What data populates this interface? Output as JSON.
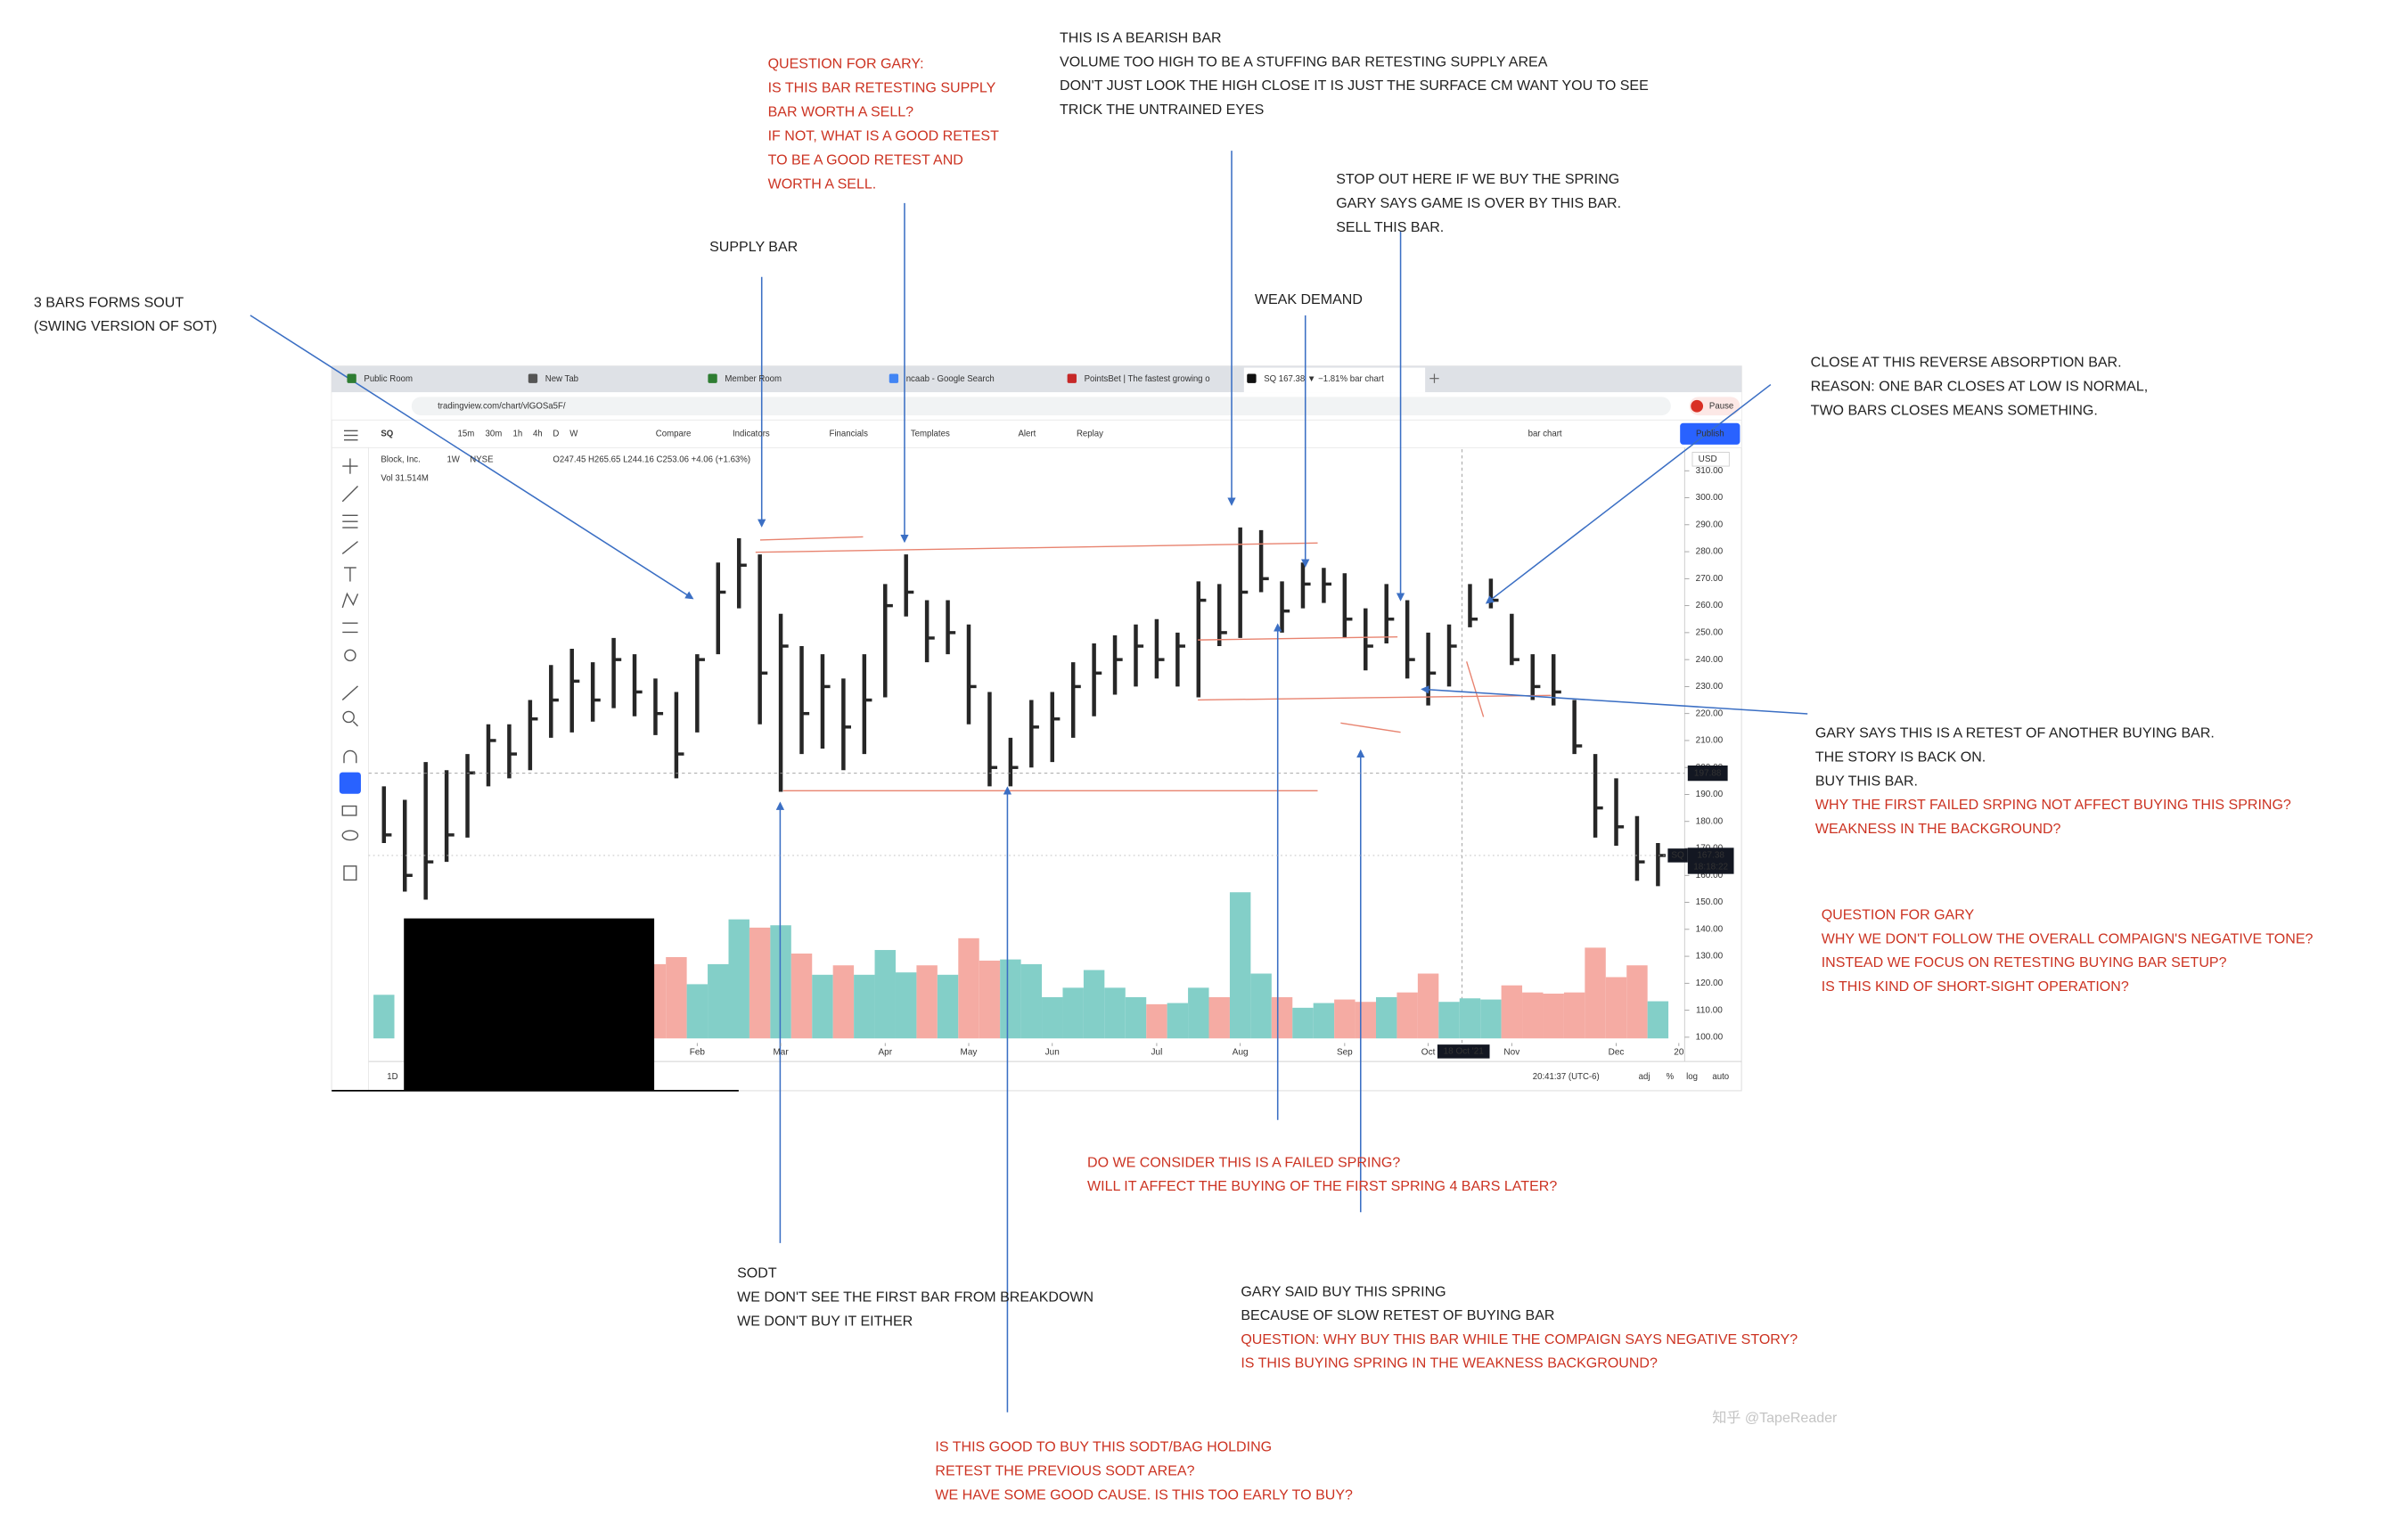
{
  "browser": {
    "tabs": [
      "Public Room",
      "New Tab",
      "Member Room",
      "ncaab - Google Search",
      "PointsBet | The fastest growing o",
      "SQ 167.38 ▼ −1.81% bar chart"
    ],
    "url": "tradingview.com/chart/vlGOSa5F/",
    "profile": "Pause"
  },
  "toolbar": {
    "symbol": "SQ",
    "intervals": [
      "15m",
      "30m",
      "1h",
      "4h",
      "D",
      "W"
    ],
    "buttons": [
      "Compare",
      "Indicators",
      "Financials",
      "Templates",
      "Alert",
      "Replay"
    ],
    "chart_style": "bar chart",
    "publish": "Publish"
  },
  "legend": {
    "name": "Block, Inc.",
    "interval": "1W",
    "exchange": "NYSE",
    "ohlc": "O247.45 H265.65 L244.16 C253.06 +4.06 (+1.63%)",
    "volume": "Vol 31.514M"
  },
  "status": {
    "range": "1D",
    "time": "20:41:37 (UTC-6)",
    "options": [
      "adj",
      "%",
      "log",
      "auto"
    ]
  },
  "chart_data": {
    "type": "hlc",
    "currency": "USD",
    "color": "#262626",
    "up_color": "#83cfc8",
    "down_color": "#f5aba3",
    "symbol_tag": "SQ",
    "countdown": "18:18:22",
    "crosshair_price": 197.88,
    "crosshair_date": "18 Oct '21",
    "high": [
      193,
      188,
      202,
      199,
      205,
      216,
      216,
      225,
      238,
      244,
      239,
      248,
      242,
      233,
      228,
      242,
      276,
      285,
      279,
      257,
      245,
      242,
      233,
      242,
      268,
      279,
      262,
      262,
      253,
      228,
      211,
      225,
      228,
      239,
      246,
      249,
      253,
      255,
      250,
      269,
      268,
      289,
      288,
      269,
      276,
      274,
      272,
      259,
      268,
      262,
      250,
      253,
      268,
      270,
      257,
      242,
      242,
      225,
      205,
      196,
      182,
      172
    ],
    "low": [
      172,
      154,
      151,
      165,
      174,
      193,
      196,
      199,
      211,
      213,
      217,
      222,
      219,
      212,
      196,
      213,
      242,
      259,
      216,
      191,
      205,
      207,
      199,
      205,
      226,
      256,
      239,
      242,
      216,
      193,
      193,
      200,
      202,
      211,
      219,
      227,
      230,
      233,
      230,
      226,
      245,
      248,
      265,
      250,
      259,
      261,
      248,
      236,
      246,
      233,
      223,
      230,
      252,
      259,
      238,
      225,
      223,
      205,
      174,
      171,
      158,
      156
    ],
    "close": [
      175,
      160,
      165,
      175,
      198,
      210,
      205,
      218,
      225,
      232,
      225,
      240,
      228,
      220,
      205,
      240,
      265,
      275,
      235,
      245,
      220,
      230,
      215,
      225,
      260,
      265,
      248,
      250,
      230,
      200,
      200,
      215,
      218,
      230,
      235,
      240,
      245,
      240,
      245,
      262,
      250,
      265,
      270,
      258,
      268,
      268,
      255,
      245,
      255,
      240,
      235,
      245,
      255,
      262,
      240,
      230,
      228,
      208,
      185,
      178,
      165,
      167.38
    ],
    "volume": [
      37,
      null,
      null,
      null,
      null,
      null,
      null,
      null,
      null,
      null,
      null,
      null,
      null,
      63,
      69,
      46,
      63,
      101,
      94,
      96,
      72,
      54,
      62,
      54,
      75,
      56,
      62,
      54,
      85,
      66,
      67,
      63,
      35,
      43,
      58,
      43,
      35,
      29,
      30,
      43,
      35,
      124,
      55,
      35,
      26,
      30,
      33,
      31,
      35,
      39,
      55,
      31,
      34,
      33,
      45,
      39,
      38,
      39,
      77,
      52,
      62,
      31.514
    ],
    "categories": [
      null,
      null,
      null,
      null,
      null,
      null,
      null,
      null,
      null,
      null,
      null,
      null,
      null,
      null,
      null,
      null,
      null,
      null,
      null,
      null,
      null,
      null,
      null,
      null,
      null,
      null,
      null,
      null,
      null,
      null,
      null,
      null,
      null,
      null,
      null,
      null,
      null,
      null,
      null,
      null,
      null,
      null,
      null,
      null,
      null,
      null,
      null,
      null,
      null,
      null,
      null,
      null,
      null,
      null,
      null,
      null,
      null,
      null,
      null,
      null,
      null,
      null
    ],
    "xticks": [
      {
        "value": 15,
        "label": "Feb"
      },
      {
        "value": 19,
        "label": "Mar"
      },
      {
        "value": 24,
        "label": "Apr"
      },
      {
        "value": 28,
        "label": "May"
      },
      {
        "value": 32,
        "label": "Jun"
      },
      {
        "value": 37,
        "label": "Jul"
      },
      {
        "value": 41,
        "label": "Aug"
      },
      {
        "value": 46,
        "label": "Sep"
      },
      {
        "value": 50,
        "label": "Oct"
      },
      {
        "value": 54,
        "label": "Nov"
      },
      {
        "value": 59,
        "label": "Dec"
      },
      {
        "value": 62,
        "label": "20"
      }
    ],
    "ylim": [
      91,
      318
    ],
    "yticks": [
      {
        "value": 100,
        "label": "100.00"
      },
      {
        "value": 110,
        "label": "110.00"
      },
      {
        "value": 120,
        "label": "120.00"
      },
      {
        "value": 130,
        "label": "130.00"
      },
      {
        "value": 140,
        "label": "140.00"
      },
      {
        "value": 150,
        "label": "150.00"
      },
      {
        "value": 160,
        "label": "160.00"
      },
      {
        "value": 170,
        "label": "170.00"
      },
      {
        "value": 180,
        "label": "180.00"
      },
      {
        "value": 190,
        "label": "190.00"
      },
      {
        "value": 200,
        "label": "200.00"
      },
      {
        "value": 210,
        "label": "210.00"
      },
      {
        "value": 220,
        "label": "220.00"
      },
      {
        "value": 230,
        "label": "230.00"
      },
      {
        "value": 240,
        "label": "240.00"
      },
      {
        "value": 250,
        "label": "250.00"
      },
      {
        "value": 260,
        "label": "260.00"
      },
      {
        "value": 270,
        "label": "270.00"
      },
      {
        "value": 280,
        "label": "280.00"
      },
      {
        "value": 290,
        "label": "290.00"
      },
      {
        "value": 300,
        "label": "300.00"
      },
      {
        "value": 310,
        "label": "310.00"
      }
    ]
  },
  "annotations": [
    {
      "color": "#222222",
      "lines": [
        "3 BARS FORMS SOUT",
        "(SWING VERSION OF SOT)"
      ]
    },
    {
      "color": "#cc3322",
      "lines": [
        "QUESTION FOR GARY:",
        "IS THIS BAR RETESTING SUPPLY",
        "BAR WORTH A SELL?",
        "IF NOT, WHAT IS A GOOD RETEST",
        "TO BE A GOOD RETEST AND",
        "WORTH  A SELL."
      ]
    },
    {
      "color": "#222222",
      "lines": [
        "SUPPLY BAR"
      ]
    },
    {
      "color": "#222222",
      "lines": [
        "THIS IS A BEARISH BAR",
        "VOLUME TOO HIGH TO BE A STUFFING BAR RETESTING SUPPLY AREA",
        "DON'T JUST LOOK THE HIGH CLOSE IT IS JUST THE SURFACE CM WANT YOU TO SEE",
        "TRICK THE UNTRAINED EYES"
      ]
    },
    {
      "color": "#222222",
      "lines": [
        "STOP OUT HERE IF WE BUY THE SPRING",
        "GARY SAYS GAME IS OVER BY THIS BAR.",
        "SELL THIS BAR."
      ]
    },
    {
      "color": "#222222",
      "lines": [
        "WEAK DEMAND"
      ]
    },
    {
      "color": "#222222",
      "lines": [
        "CLOSE AT THIS REVERSE ABSORPTION BAR.",
        "REASON: ONE BAR CLOSES AT LOW IS NORMAL,",
        "TWO BARS CLOSES MEANS SOMETHING."
      ]
    },
    {
      "color": "#222222",
      "lines": [
        "GARY SAYS THIS IS A RETEST OF ANOTHER BUYING BAR.",
        "THE STORY IS BACK ON.",
        "BUY THIS BAR."
      ]
    },
    {
      "color": "#cc3322",
      "lines": [
        "WHY THE FIRST FAILED SRPING NOT AFFECT BUYING THIS SPRING?",
        "WEAKNESS IN THE BACKGROUND?"
      ]
    },
    {
      "color": "#cc3322",
      "lines": [
        "QUESTION FOR GARY",
        "WHY WE DON'T FOLLOW THE OVERALL COMPAIGN'S NEGATIVE TONE?",
        "INSTEAD WE FOCUS ON RETESTING BUYING BAR SETUP?",
        "IS THIS KIND OF SHORT-SIGHT OPERATION?"
      ]
    },
    {
      "color": "#cc3322",
      "lines": [
        "DO WE CONSIDER THIS IS A FAILED SPRING?",
        "WILL IT AFFECT THE BUYING OF THE FIRST SPRING 4 BARS LATER?"
      ]
    },
    {
      "color": "#222222",
      "lines": [
        "SODT",
        "WE DON'T SEE THE FIRST BAR FROM BREAKDOWN",
        "WE DON'T BUY IT EITHER"
      ]
    },
    {
      "color": "#222222",
      "lines": [
        "GARY SAID BUY THIS SPRING",
        "BECAUSE OF SLOW RETEST OF BUYING BAR"
      ]
    },
    {
      "color": "#cc3322",
      "lines": [
        "QUESTION: WHY BUY THIS BAR WHILE THE COMPAIGN SAYS NEGATIVE STORY?",
        "IS THIS BUYING SPRING IN THE WEAKNESS BACKGROUND?"
      ]
    },
    {
      "color": "#cc3322",
      "lines": [
        "IS THIS GOOD TO BUY THIS SODT/BAG HOLDING",
        "RETEST THE PREVIOUS SODT AREA?",
        "WE HAVE SOME GOOD CAUSE. IS THIS TOO EARLY TO BUY?"
      ]
    }
  ],
  "watermark": "知乎 @TapeReader"
}
